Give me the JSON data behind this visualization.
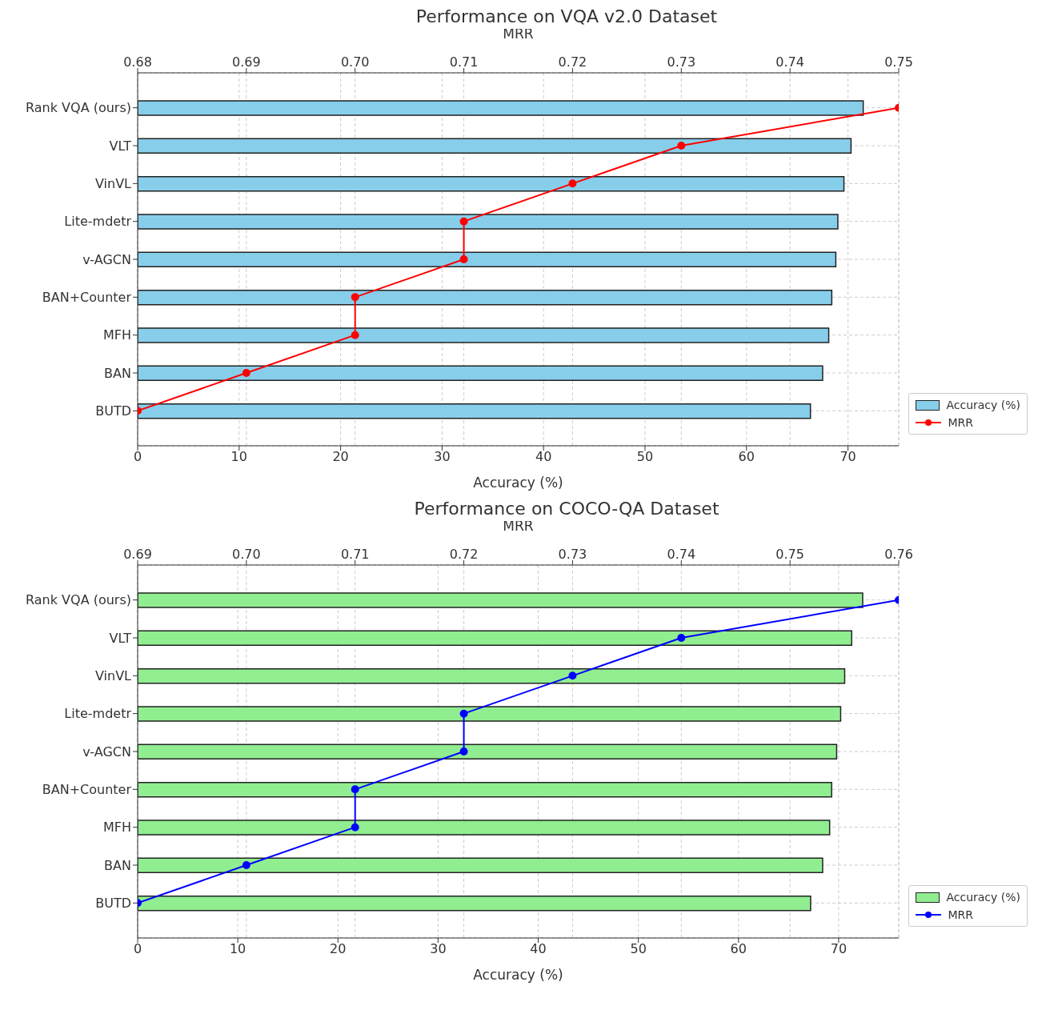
{
  "chart_data": [
    {
      "type": "bar",
      "orientation": "horizontal",
      "title": "Performance on VQA v2.0 Dataset",
      "xlabel": "Accuracy (%)",
      "x2label": "MRR",
      "categories": [
        "Rank VQA (ours)",
        "VLT",
        "VinVL",
        "Lite-mdetr",
        "v-AGCN",
        "BAN+Counter",
        "MFH",
        "BAN",
        "BUTD"
      ],
      "series": [
        {
          "name": "Accuracy (%)",
          "color": "#87ceeb",
          "values": [
            71.5,
            70.3,
            69.6,
            69.0,
            68.8,
            68.4,
            68.1,
            67.5,
            66.3
          ]
        },
        {
          "name": "MRR",
          "type": "line",
          "axis": "x2",
          "color": "#ff0000",
          "marker": "circle",
          "values": [
            0.75,
            0.73,
            0.72,
            0.71,
            0.71,
            0.7,
            0.7,
            0.69,
            0.68
          ]
        }
      ],
      "xlim": [
        0,
        75
      ],
      "xticks": [
        0,
        10,
        20,
        30,
        40,
        50,
        60,
        70
      ],
      "x2lim": [
        0.68,
        0.75
      ],
      "x2ticks": [
        0.68,
        0.69,
        {
          "value": 0.7,
          "label": "0.70"
        },
        0.71,
        0.72,
        0.73,
        0.74,
        0.75
      ],
      "grid": true,
      "legend": "bottom right"
    },
    {
      "type": "bar",
      "orientation": "horizontal",
      "title": "Performance on COCO-QA Dataset",
      "xlabel": "Accuracy (%)",
      "x2label": "MRR",
      "categories": [
        "Rank VQA (ours)",
        "VLT",
        "VinVL",
        "Lite-mdetr",
        "v-AGCN",
        "BAN+Counter",
        "MFH",
        "BAN",
        "BUTD"
      ],
      "series": [
        {
          "name": "Accuracy (%)",
          "color": "#90ee90",
          "values": [
            72.4,
            71.3,
            70.6,
            70.2,
            69.8,
            69.3,
            69.1,
            68.4,
            67.2
          ]
        },
        {
          "name": "MRR",
          "type": "line",
          "axis": "x2",
          "color": "#0000ff",
          "marker": "circle",
          "values": [
            0.76,
            0.74,
            0.73,
            0.72,
            0.72,
            0.71,
            0.71,
            0.7,
            0.69
          ]
        }
      ],
      "xlim": [
        0,
        76
      ],
      "xticks": [
        0,
        10,
        20,
        30,
        40,
        50,
        60,
        70
      ],
      "x2lim": [
        0.69,
        0.76
      ],
      "x2ticks": [
        0.69,
        {
          "value": 0.7,
          "label": "0.70"
        },
        0.71,
        0.72,
        0.73,
        0.74,
        0.75,
        0.76
      ],
      "grid": true,
      "legend": "bottom right"
    }
  ]
}
